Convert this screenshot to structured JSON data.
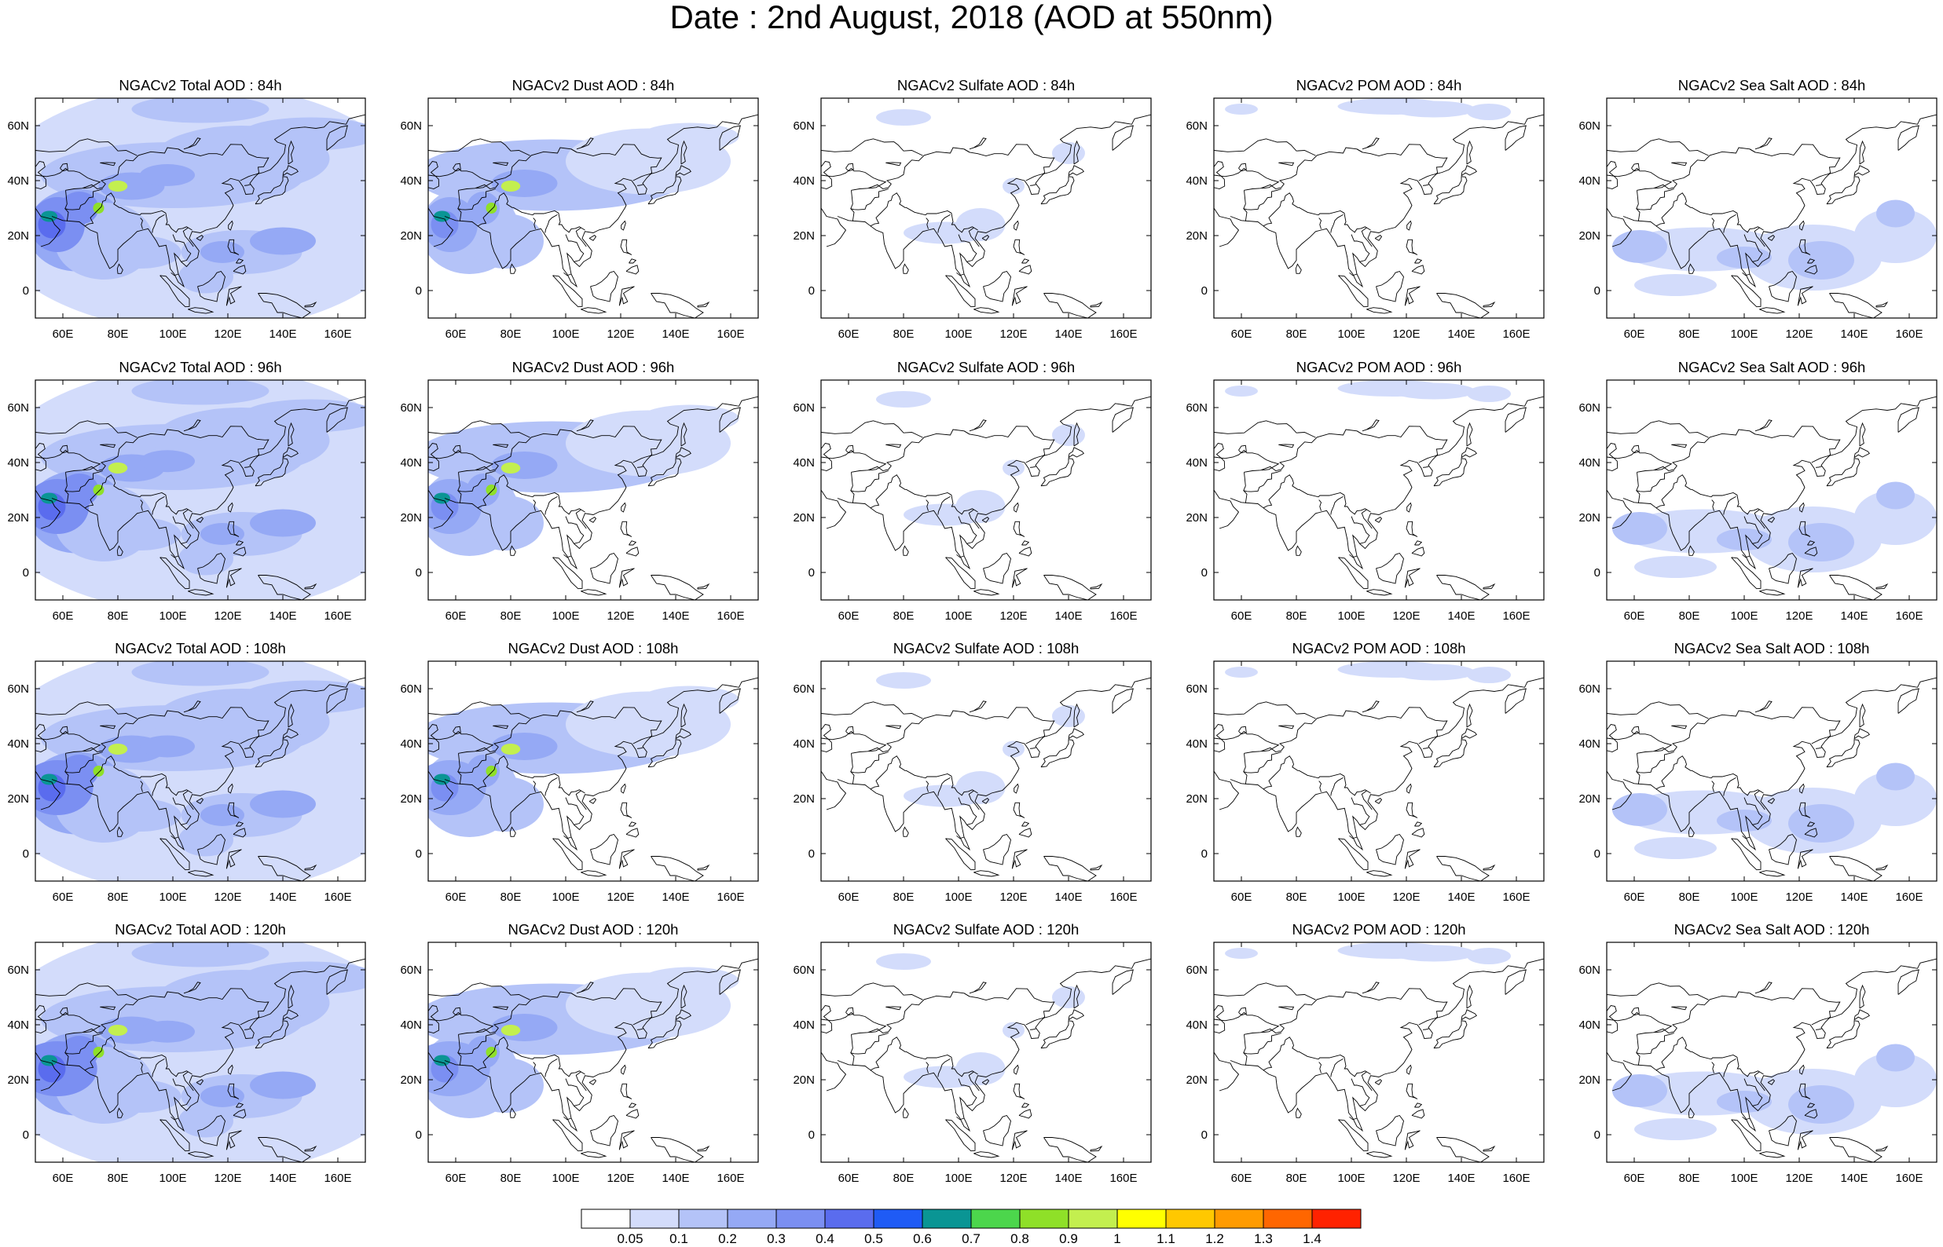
{
  "title": "Date : 2nd August, 2018 (AOD at 550nm)",
  "map_extent": {
    "lon_min": 50,
    "lon_max": 170,
    "lat_min": -10,
    "lat_max": 70
  },
  "lon_ticks": [
    "60E",
    "80E",
    "100E",
    "120E",
    "140E",
    "160E"
  ],
  "lat_ticks": [
    "60N",
    "40N",
    "20N",
    "0"
  ],
  "rows": [
    {
      "forecast_hour": "84h",
      "panels": [
        "NGACv2 Total AOD : 84h",
        "NGACv2 Dust AOD : 84h",
        "NGACv2 Sulfate AOD : 84h",
        "NGACv2 POM AOD : 84h",
        "NGACv2 Sea Salt AOD : 84h"
      ]
    },
    {
      "forecast_hour": "96h",
      "panels": [
        "NGACv2 Total AOD : 96h",
        "NGACv2 Dust AOD : 96h",
        "NGACv2 Sulfate AOD : 96h",
        "NGACv2 POM AOD : 96h",
        "NGACv2 Sea Salt AOD : 96h"
      ]
    },
    {
      "forecast_hour": "108h",
      "panels": [
        "NGACv2 Total AOD : 108h",
        "NGACv2 Dust AOD : 108h",
        "NGACv2 Sulfate AOD : 108h",
        "NGACv2 POM AOD : 108h",
        "NGACv2 Sea Salt AOD : 108h"
      ]
    },
    {
      "forecast_hour": "120h",
      "panels": [
        "NGACv2 Total AOD : 120h",
        "NGACv2 Dust AOD : 120h",
        "NGACv2 Sulfate AOD : 120h",
        "NGACv2 POM AOD : 120h",
        "NGACv2 Sea Salt  AOD : 120h"
      ]
    }
  ],
  "colorbar": {
    "labels": [
      "0.05",
      "0.1",
      "0.2",
      "0.3",
      "0.4",
      "0.5",
      "0.6",
      "0.7",
      "0.8",
      "0.9",
      "1",
      "1.1",
      "1.2",
      "1.3",
      "1.4"
    ],
    "colors": [
      "#ffffff",
      "#d3dcfb",
      "#b4c3f8",
      "#95a9f5",
      "#7b8ff2",
      "#5a6cee",
      "#1f5bf5",
      "#0a9594",
      "#4cd64c",
      "#8fe028",
      "#c3ef4f",
      "#ffff00",
      "#ffc800",
      "#ff9b00",
      "#ff6600",
      "#ff2200"
    ]
  }
}
